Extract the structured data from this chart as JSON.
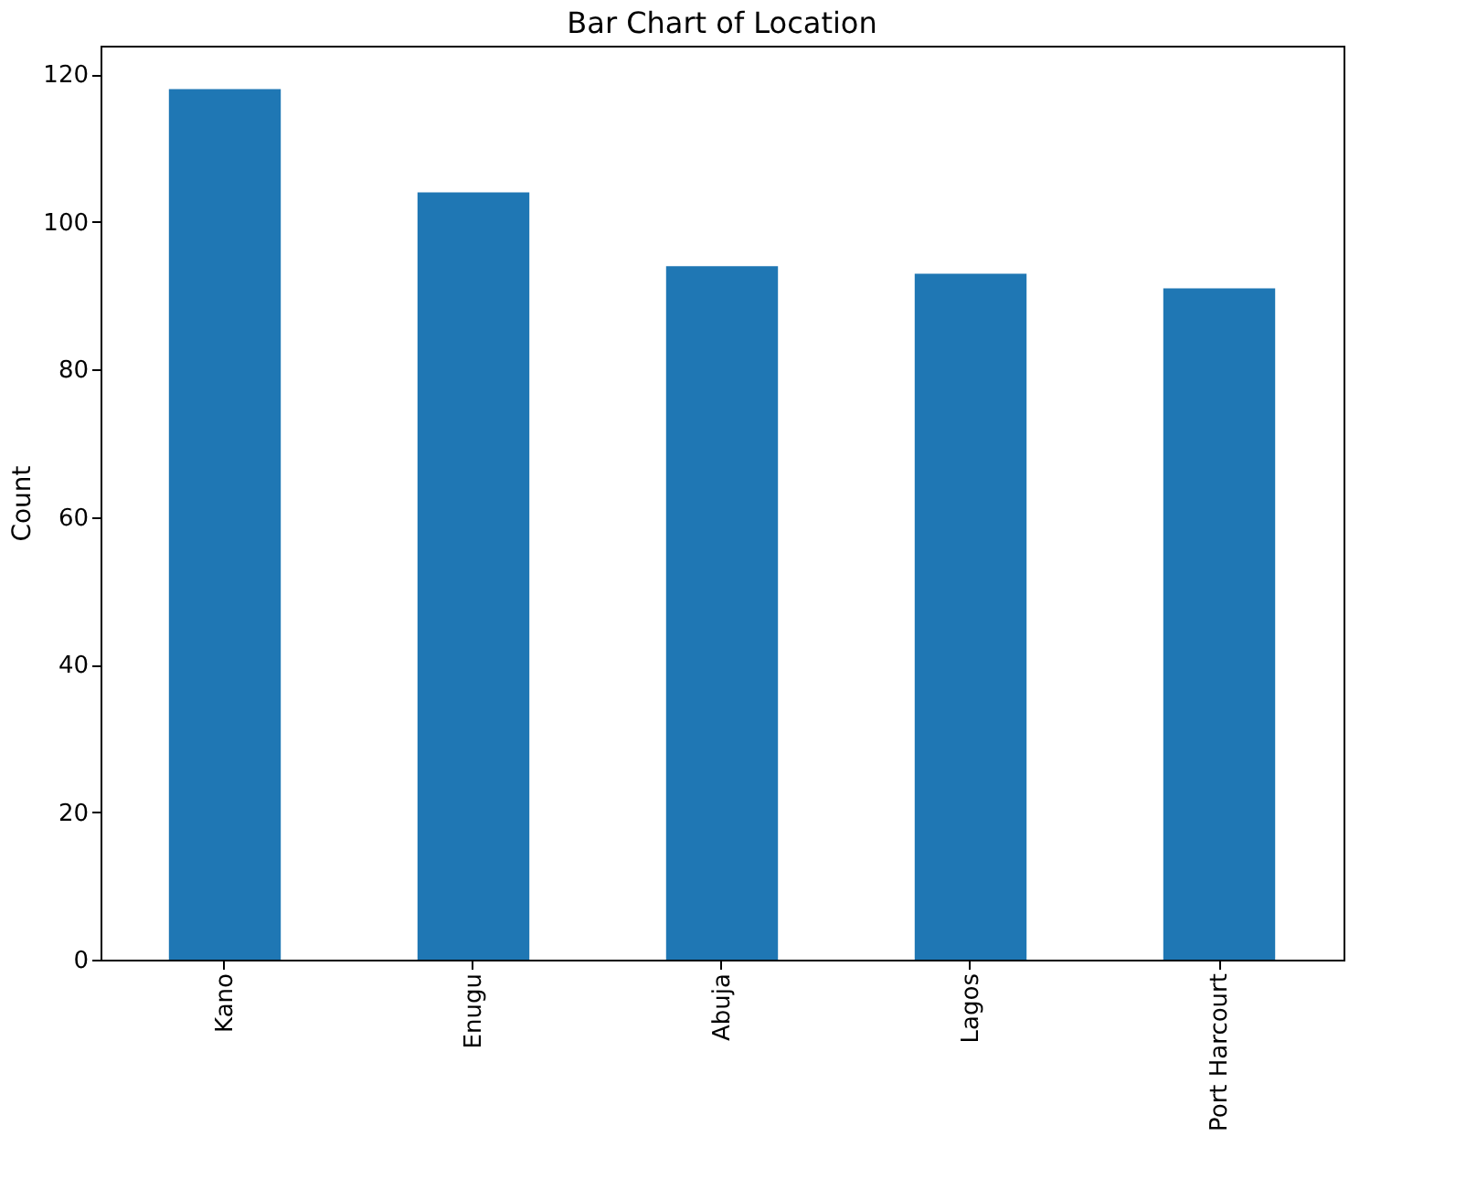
{
  "chart_data": {
    "type": "bar",
    "title": "Bar Chart of Location",
    "ylabel": "Count",
    "categories": [
      "Kano",
      "Enugu",
      "Abuja",
      "Lagos",
      "Port Harcourt"
    ],
    "values": [
      118,
      104,
      94,
      93,
      91
    ],
    "color": "#1f77b4",
    "ylim": [
      0,
      123.9
    ],
    "yticks": [
      0,
      20,
      40,
      60,
      80,
      100,
      120
    ],
    "grid": false
  }
}
